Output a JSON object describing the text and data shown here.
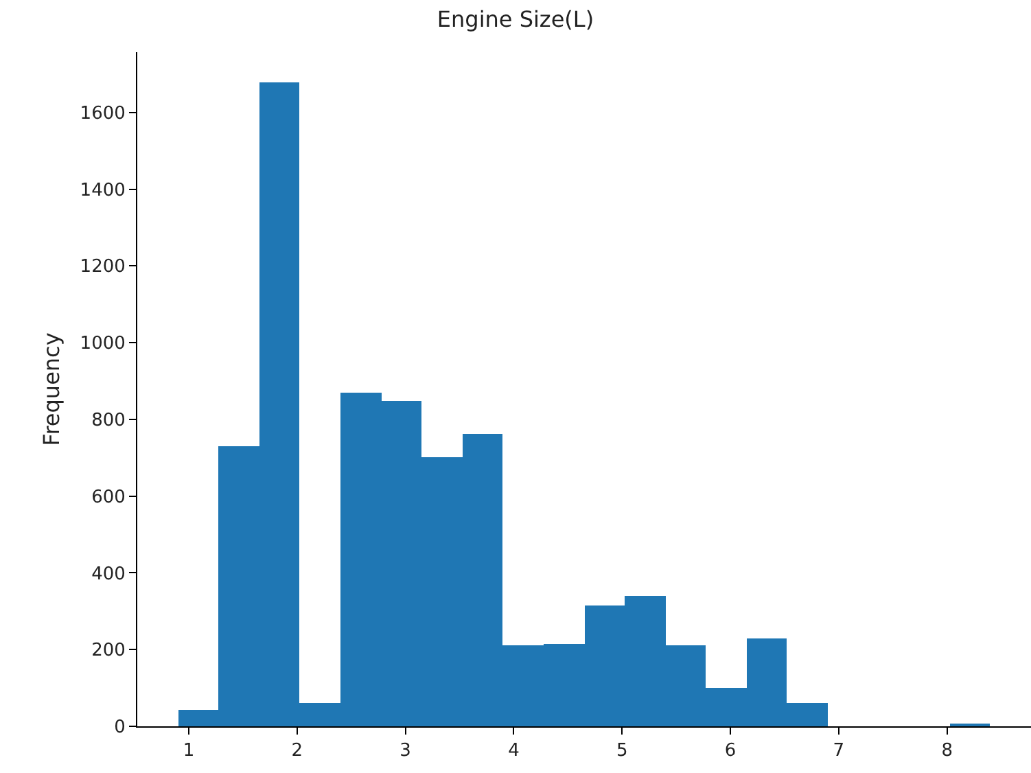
{
  "chart_data": {
    "type": "histogram",
    "title": "Engine Size(L)",
    "ylabel": "Frequency",
    "color": "#1f77b4",
    "bins": [
      0.9,
      1.275,
      1.65,
      2.025,
      2.4,
      2.775,
      3.15,
      3.525,
      3.9,
      4.275,
      4.65,
      5.025,
      5.4,
      5.775,
      6.15,
      6.525,
      6.9,
      7.275,
      7.65,
      8.025,
      8.4
    ],
    "values": [
      44,
      730,
      1677,
      60,
      868,
      849,
      700,
      763,
      211,
      214,
      316,
      339,
      210,
      100,
      229,
      62,
      0,
      0,
      0,
      4
    ],
    "xlim": [
      0.525,
      8.775
    ],
    "ylim": [
      0,
      1757
    ],
    "xticks": [
      1,
      2,
      3,
      4,
      5,
      6,
      7,
      8
    ],
    "yticks": [
      0,
      200,
      400,
      600,
      800,
      1000,
      1200,
      1400,
      1600
    ]
  }
}
